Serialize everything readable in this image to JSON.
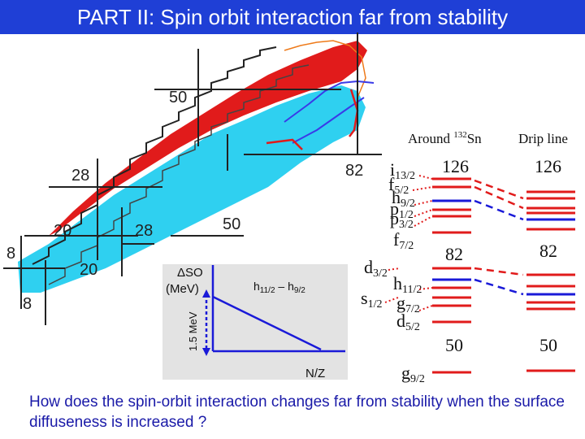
{
  "title": "PART II: Spin orbit interaction far from stability",
  "chart": {
    "magic_labels": [
      "50",
      "82",
      "28",
      "20",
      "28",
      "50",
      "8",
      "20",
      "8"
    ],
    "inset": {
      "ylabel": "ΔSO (MeV)",
      "scale": "1.5 MeV",
      "curve_label": "h11/2 – h9/2",
      "xlabel": "N/Z"
    }
  },
  "levels": {
    "col1_header": "Around 132Sn",
    "col2_header": "Drip line",
    "magic_numbers": [
      "126",
      "82",
      "50"
    ],
    "orbitals": [
      "i13/2",
      "f5/2",
      "h9/2",
      "p1/2",
      "p3/2",
      "f7/2",
      "d3/2",
      "h11/2",
      "s1/2",
      "g7/2",
      "d5/2",
      "g9/2"
    ]
  },
  "question": "How does the spin-orbit interaction changes far from stability when the surface diffuseness is increased ?",
  "colors": {
    "title_bg": "#1f3fd6",
    "red": "#e11b1b",
    "blue": "#1a1ad8",
    "cyan": "#2fd0f0"
  }
}
